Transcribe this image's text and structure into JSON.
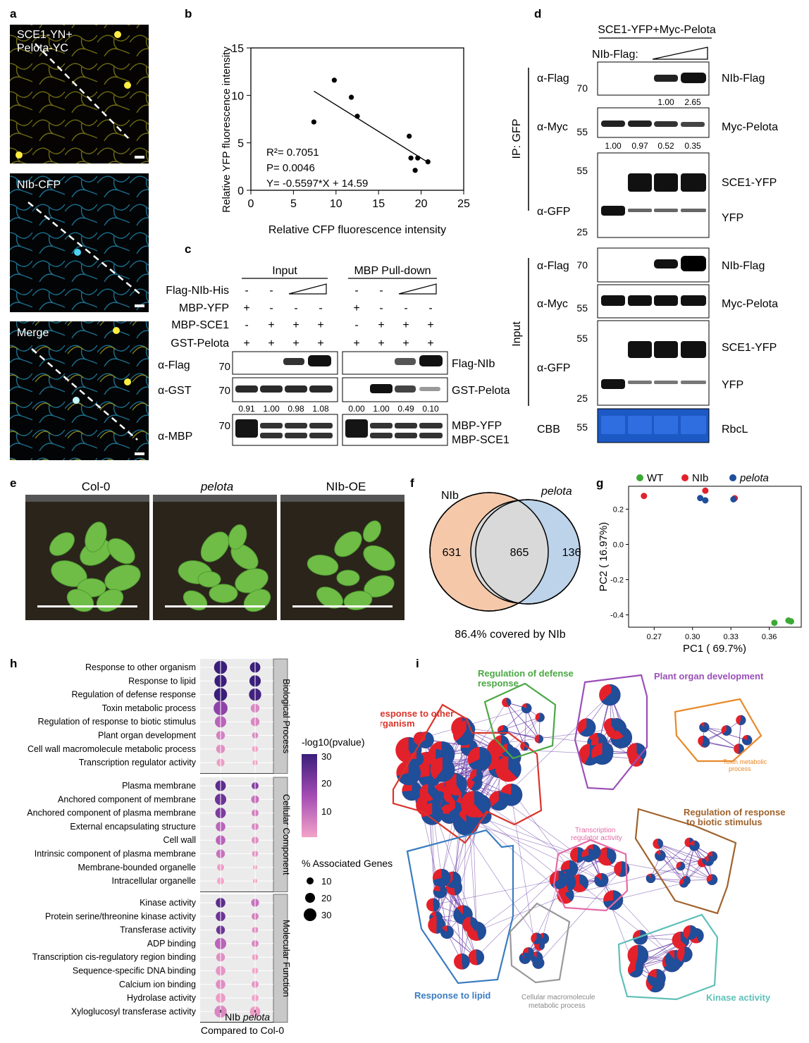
{
  "panels": [
    "a",
    "b",
    "c",
    "d",
    "e",
    "f",
    "g",
    "h",
    "i"
  ],
  "a": {
    "img1_label_1": "SCE1-YN+",
    "img1_label_2": "Pelota-YC",
    "img2_label": "NIb-CFP",
    "img3_label": "Merge"
  },
  "b": {
    "chart_data": {
      "type": "scatter",
      "xlabel": "Relative  CFP fluorescence intensity",
      "ylabel": "Relative  YFP fluorescence intensity",
      "xlim": [
        0,
        25
      ],
      "ylim": [
        0,
        15
      ],
      "xticks": [
        0,
        5,
        10,
        15,
        20,
        25
      ],
      "yticks": [
        0,
        5,
        10,
        15
      ],
      "x": [
        7.4,
        9.8,
        11.8,
        12.5,
        18.6,
        18.8,
        19.3,
        19.6,
        20.8
      ],
      "y": [
        7.2,
        11.6,
        9.8,
        7.8,
        5.7,
        3.4,
        2.1,
        3.4,
        3.0
      ],
      "fit": {
        "slope": -0.5597,
        "intercept": 14.59,
        "x_range": [
          7.4,
          20.8
        ]
      },
      "annotations": [
        "R²= 0.7051",
        "P= 0.0046",
        "Y= -0.5597*X + 14.59"
      ]
    }
  },
  "c": {
    "input_title": "Input",
    "pulldown_title": "MBP  Pull-down",
    "row_labels": [
      "Flag-NIb-His",
      "MBP-YFP",
      "MBP-SCE1",
      "GST-Pelota"
    ],
    "input_signs": [
      [
        "-",
        "-",
        "ramp",
        "ramp"
      ],
      [
        "+",
        "-",
        "-",
        "-"
      ],
      [
        "-",
        "+",
        "+",
        "+"
      ],
      [
        "+",
        "+",
        "+",
        "+"
      ]
    ],
    "pulldown_signs": [
      [
        "-",
        "-",
        "ramp",
        "ramp"
      ],
      [
        "+",
        "-",
        "-",
        "-"
      ],
      [
        "-",
        "+",
        "+",
        "+"
      ],
      [
        "+",
        "+",
        "+",
        "+"
      ]
    ],
    "blots": [
      {
        "antibody": "α-Flag",
        "mw": "70",
        "name": "Flag-NIb"
      },
      {
        "antibody": "α-GST",
        "mw": "70",
        "name": "GST-Pelota"
      },
      {
        "antibody": "α-MBP",
        "mw": "70",
        "name": "MBP-YFP",
        "name2": "MBP-SCE1"
      }
    ],
    "quant_input": [
      "0.91",
      "1.00",
      "0.98",
      "1.08"
    ],
    "quant_pulldown": [
      "0.00",
      "1.00",
      "0.49",
      "0.10"
    ]
  },
  "d": {
    "title": "SCE1-YFP+Myc-Pelota",
    "nib_label": "NIb-Flag:",
    "ip_label": "IP: GFP",
    "input_label": "Input",
    "ip_blots": [
      {
        "antibody": "α-Flag",
        "mw": "70",
        "name": "NIb-Flag"
      },
      {
        "antibody": "α-Myc",
        "mw": "55",
        "name": "Myc-Pelota"
      },
      {
        "antibody": "α-GFP",
        "mw_top": "55",
        "mw_bottom": "25",
        "name": "SCE1-YFP",
        "name2": "YFP"
      }
    ],
    "quant_flag": [
      "1.00",
      "2.65"
    ],
    "quant_myc": [
      "1.00",
      "0.97",
      "0.52",
      "0.35"
    ],
    "input_blots": [
      {
        "antibody": "α-Flag",
        "mw": "70",
        "name": "NIb-Flag"
      },
      {
        "antibody": "α-Myc",
        "mw": "55",
        "name": "Myc-Pelota"
      },
      {
        "antibody": "α-GFP",
        "mw_top": "55",
        "mw_bottom": "25",
        "name": "SCE1-YFP",
        "name2": "YFP"
      },
      {
        "antibody": "CBB",
        "mw": "55",
        "name": "RbcL"
      }
    ]
  },
  "e": {
    "labels": [
      "Col-0",
      "pelota",
      "NIb-OE"
    ]
  },
  "f": {
    "left_label": "NIb",
    "right_label": "pelota",
    "left_only": "631",
    "overlap": "865",
    "right_only": "136",
    "caption": "86.4% covered by NIb"
  },
  "g": {
    "chart_data": {
      "type": "scatter",
      "xlabel": "PC1 ( 69.7%)",
      "ylabel": "PC2 ( 16.97%)",
      "xlim": [
        0.25,
        0.385
      ],
      "ylim": [
        -0.47,
        0.33
      ],
      "xticks": [
        "0.27",
        "0.30",
        "0.33",
        "0.36"
      ],
      "yticks": [
        "0.2",
        "0.0",
        "-0.2",
        "-0.4"
      ],
      "series": [
        {
          "name": "WT",
          "color": "#3aaa35",
          "x": [
            0.364,
            0.375,
            0.377
          ],
          "y": [
            -0.445,
            -0.432,
            -0.437
          ]
        },
        {
          "name": "NIb",
          "color": "#e3212b",
          "x": [
            0.262,
            0.31,
            0.333
          ],
          "y": [
            0.275,
            0.305,
            0.262
          ]
        },
        {
          "name": "pelota",
          "color": "#1f4e9a",
          "x": [
            0.306,
            0.31,
            0.332
          ],
          "y": [
            0.263,
            0.25,
            0.256
          ]
        }
      ]
    }
  },
  "h": {
    "groups": [
      {
        "name": "Biological Process",
        "terms": [
          [
            "Response to other organism",
            30,
            15,
            30,
            12
          ],
          [
            "Response to lipid",
            30,
            14,
            30,
            13
          ],
          [
            "Regulation of defense response",
            30,
            15,
            29,
            14
          ],
          [
            "Toxin metabolic process",
            20,
            16,
            9,
            10
          ],
          [
            "Regulation of response to biotic stimulus",
            14,
            13,
            9,
            10
          ],
          [
            "Plant organ development",
            10,
            10,
            9,
            7
          ],
          [
            "Cell wall macromolecule metabolic process",
            8,
            10,
            5,
            7
          ],
          [
            "Transcription regulator activity",
            6,
            9,
            5,
            6
          ]
        ]
      },
      {
        "name": "Cellular Component",
        "terms": [
          [
            "Plasma membrane",
            26,
            12,
            21,
            8
          ],
          [
            "Anchored component of membrane",
            24,
            13,
            12,
            9
          ],
          [
            "Anchored component of plasma membrane",
            22,
            12,
            10,
            8
          ],
          [
            "External encapsulating structure",
            14,
            11,
            9,
            8
          ],
          [
            "Cell wall",
            14,
            11,
            8,
            8
          ],
          [
            "Intrinsic component of plasma membrane",
            12,
            10,
            7,
            7
          ],
          [
            "Membrane-bounded organelle",
            6,
            8,
            3,
            5
          ],
          [
            "Intracellular organelle",
            5,
            8,
            2,
            5
          ]
        ]
      },
      {
        "name": "Molecular Function",
        "terms": [
          [
            "Kinase activity",
            26,
            11,
            12,
            9
          ],
          [
            "Protein serine/threonine kinase activity",
            24,
            11,
            10,
            8
          ],
          [
            "Transferase activity",
            24,
            10,
            8,
            7
          ],
          [
            "ADP binding",
            14,
            13,
            9,
            8
          ],
          [
            "Transcription cis-regulatory region binding",
            8,
            10,
            6,
            7
          ],
          [
            "Sequence-specific DNA binding",
            7,
            11,
            5,
            7
          ],
          [
            "Calcium ion binding",
            8,
            11,
            7,
            8
          ],
          [
            "Hydrolase activity",
            6,
            11,
            5,
            8
          ],
          [
            "Xyloglucosyl transferase activity",
            9,
            14,
            6,
            12
          ]
        ]
      }
    ],
    "x_labels": [
      "NIb",
      "pelota"
    ],
    "x_caption": "Compared to Col-0",
    "legend_color_title": "-log10(pvalue)",
    "legend_color_ticks": [
      "30",
      "20",
      "10"
    ],
    "legend_size_title": "% Associated Genes",
    "legend_size_ticks": [
      "10",
      "20",
      "30"
    ]
  },
  "i": {
    "labels": {
      "defense": "Regulation of defense\nresponse",
      "organ": "Plant organ development",
      "other": "Response to other\norganism",
      "toxin": "Toxin metabolic\nprocess",
      "biotic": "Regulation of response\nto biotic stimulus",
      "treg": "Transcription\nregulator activity",
      "lipid": "Response to lipid",
      "cellmacro": "Cellular macromolecule\nmetabolic process",
      "kinase": "Kinase activity"
    },
    "colors": {
      "red": "#e3212b",
      "blue": "#1f4e9a",
      "edge": "#6a3fa8"
    }
  }
}
